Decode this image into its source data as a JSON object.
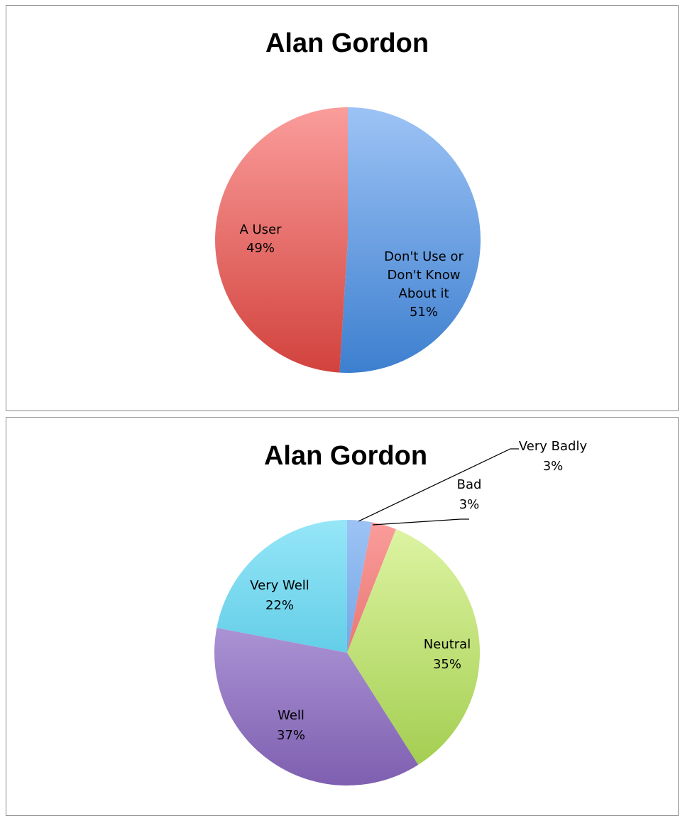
{
  "chart_data": [
    {
      "type": "pie",
      "title": "Alan Gordon",
      "slices": [
        {
          "label": "Don't Use or Don't Know About it",
          "label_lines": [
            "Don't Use or",
            "Don't Know",
            "About it"
          ],
          "value": 51,
          "percent_label": "51%",
          "color_light": "#9dc3f5",
          "color_dark": "#3d7fcf"
        },
        {
          "label": "A User",
          "label_lines": [
            "A User"
          ],
          "value": 49,
          "percent_label": "49%",
          "color_light": "#fa9d9b",
          "color_dark": "#d2423d"
        }
      ],
      "start_angle_deg": 0,
      "direction": "clockwise",
      "legend": "none",
      "data_labels": "inside"
    },
    {
      "type": "pie",
      "title": "Alan Gordon",
      "slices": [
        {
          "label": "Very Badly",
          "label_lines": [
            "Very Badly"
          ],
          "value": 3,
          "percent_label": "3%",
          "color_light": "#9dc3f5",
          "color_dark": "#4b8ad6"
        },
        {
          "label": "Bad",
          "label_lines": [
            "Bad"
          ],
          "value": 3,
          "percent_label": "3%",
          "color_light": "#fa9d9b",
          "color_dark": "#d8524d"
        },
        {
          "label": "Neutral",
          "label_lines": [
            "Neutral"
          ],
          "value": 35,
          "percent_label": "35%",
          "color_light": "#dff5a5",
          "color_dark": "#9fcb4a"
        },
        {
          "label": "Well",
          "label_lines": [
            "Well"
          ],
          "value": 37,
          "percent_label": "37%",
          "color_light": "#c8b6ec",
          "color_dark": "#7e5fb0"
        },
        {
          "label": "Very Well",
          "label_lines": [
            "Very Well"
          ],
          "value": 22,
          "percent_label": "22%",
          "color_light": "#96e6f7",
          "color_dark": "#32b6d9"
        }
      ],
      "start_angle_deg": 0,
      "direction": "clockwise",
      "legend": "none",
      "data_labels": "inside, outside with leader lines for small slices"
    }
  ]
}
